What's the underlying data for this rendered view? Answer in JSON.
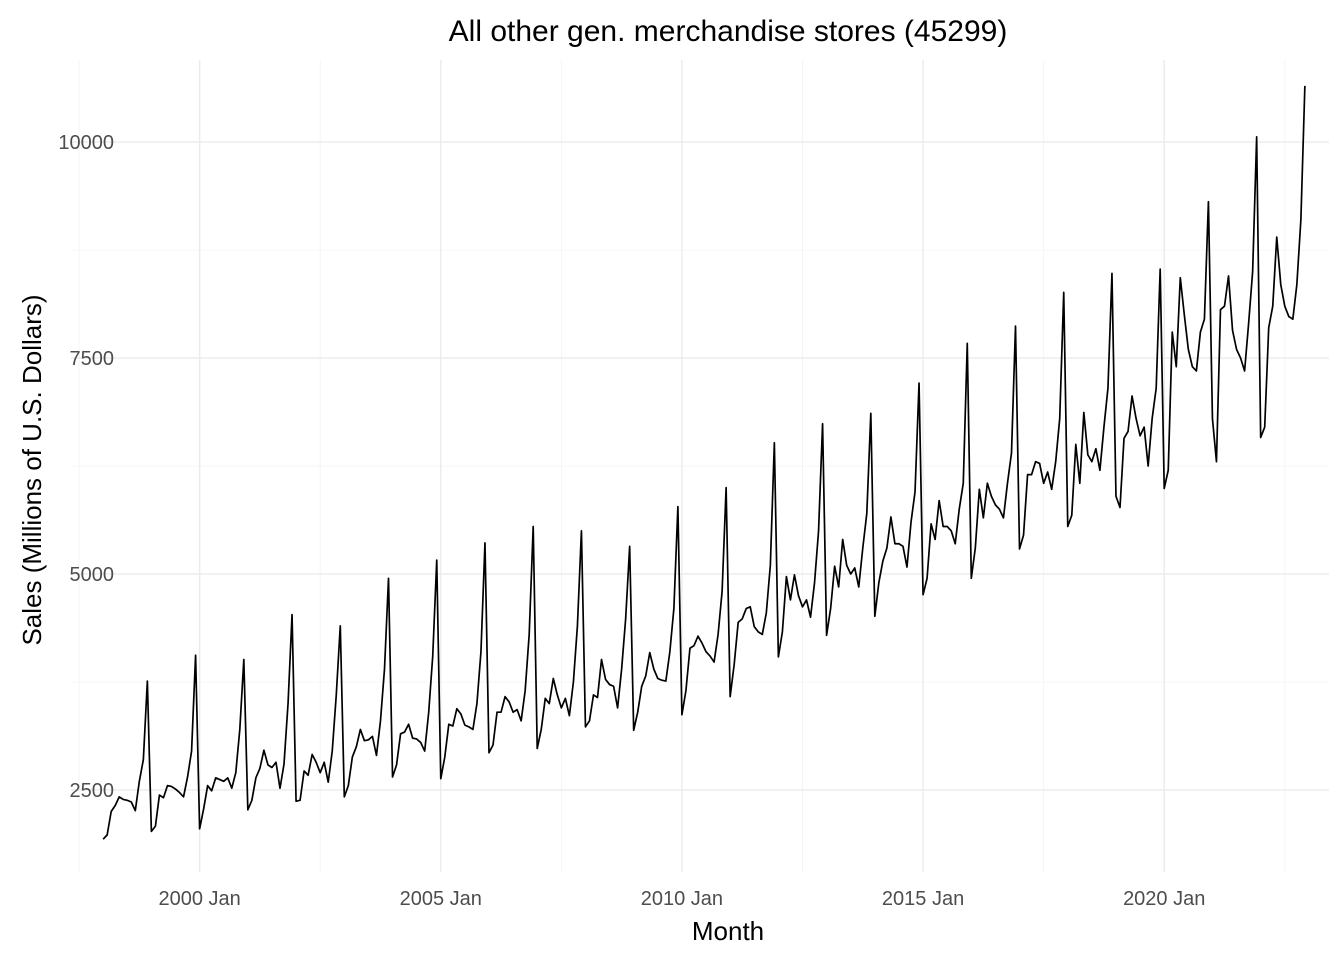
{
  "chart_data": {
    "type": "line",
    "title": "All other gen. merchandise stores (45299)",
    "xlabel": "Month",
    "ylabel": "Sales (Millions of U.S. Dollars)",
    "x_start": "1998-01",
    "x_end": "2022-12",
    "x_frequency": "monthly",
    "xlim": [
      "1997-05",
      "2023-06"
    ],
    "ylim": [
      1550,
      10950
    ],
    "x_ticks": [
      {
        "date": "2000-01",
        "label": "2000 Jan"
      },
      {
        "date": "2005-01",
        "label": "2005 Jan"
      },
      {
        "date": "2010-01",
        "label": "2010 Jan"
      },
      {
        "date": "2015-01",
        "label": "2015 Jan"
      },
      {
        "date": "2020-01",
        "label": "2020 Jan"
      }
    ],
    "y_ticks": [
      {
        "value": 2500,
        "label": "2500"
      },
      {
        "value": 5000,
        "label": "5000"
      },
      {
        "value": 7500,
        "label": "7500"
      },
      {
        "value": 10000,
        "label": "10000"
      }
    ],
    "grid": true,
    "legend": "none",
    "line_color": "#000000",
    "series": [
      {
        "values": [
          1930,
          1980,
          2250,
          2320,
          2420,
          2390,
          2380,
          2360,
          2260,
          2600,
          2850,
          3760,
          2020,
          2080,
          2440,
          2410,
          2550,
          2540,
          2510,
          2470,
          2420,
          2650,
          2950,
          4060,
          2050,
          2280,
          2550,
          2490,
          2640,
          2620,
          2600,
          2640,
          2520,
          2700,
          3200,
          4010,
          2270,
          2380,
          2640,
          2750,
          2960,
          2790,
          2760,
          2820,
          2520,
          2800,
          3500,
          4530,
          2370,
          2380,
          2720,
          2670,
          2910,
          2820,
          2700,
          2820,
          2590,
          2950,
          3600,
          4400,
          2420,
          2550,
          2880,
          3000,
          3200,
          3070,
          3080,
          3120,
          2900,
          3300,
          3900,
          4950,
          2650,
          2790,
          3150,
          3170,
          3260,
          3100,
          3090,
          3050,
          2950,
          3400,
          4050,
          5160,
          2630,
          2880,
          3260,
          3240,
          3440,
          3380,
          3250,
          3230,
          3200,
          3500,
          4100,
          5360,
          2930,
          3020,
          3400,
          3400,
          3580,
          3520,
          3400,
          3430,
          3300,
          3650,
          4300,
          5550,
          2980,
          3200,
          3560,
          3500,
          3790,
          3600,
          3450,
          3560,
          3360,
          3750,
          4400,
          5500,
          3230,
          3300,
          3600,
          3570,
          4010,
          3780,
          3720,
          3700,
          3450,
          3900,
          4480,
          5320,
          3190,
          3400,
          3700,
          3820,
          4090,
          3900,
          3790,
          3770,
          3760,
          4100,
          4600,
          5780,
          3370,
          3650,
          4140,
          4170,
          4280,
          4200,
          4100,
          4050,
          3980,
          4300,
          4800,
          6000,
          3580,
          3950,
          4440,
          4480,
          4600,
          4620,
          4390,
          4330,
          4300,
          4550,
          5100,
          6520,
          4040,
          4330,
          4970,
          4700,
          4990,
          4750,
          4620,
          4700,
          4500,
          4900,
          5500,
          6740,
          4290,
          4600,
          5090,
          4850,
          5400,
          5100,
          5000,
          5070,
          4850,
          5300,
          5700,
          6860,
          4510,
          4900,
          5150,
          5300,
          5660,
          5350,
          5350,
          5320,
          5080,
          5600,
          5950,
          7210,
          4760,
          4950,
          5580,
          5400,
          5850,
          5550,
          5550,
          5500,
          5350,
          5750,
          6050,
          7670,
          4950,
          5300,
          5980,
          5650,
          6050,
          5900,
          5800,
          5750,
          5650,
          6050,
          6400,
          7870,
          5290,
          5450,
          6150,
          6150,
          6300,
          6280,
          6050,
          6180,
          5980,
          6300,
          6800,
          8260,
          5550,
          5680,
          6500,
          6050,
          6870,
          6380,
          6300,
          6450,
          6200,
          6700,
          7150,
          8480,
          5900,
          5770,
          6570,
          6650,
          7060,
          6800,
          6600,
          6700,
          6250,
          6800,
          7150,
          8530,
          5990,
          6200,
          7800,
          7400,
          8430,
          8000,
          7600,
          7400,
          7350,
          7800,
          7950,
          9310,
          6800,
          6300,
          8060,
          8100,
          8450,
          7820,
          7600,
          7500,
          7350,
          7900,
          8500,
          10060,
          6580,
          6700,
          7850,
          8100,
          8900,
          8350,
          8100,
          7980,
          7950,
          8350,
          9100,
          10650
        ]
      }
    ]
  }
}
